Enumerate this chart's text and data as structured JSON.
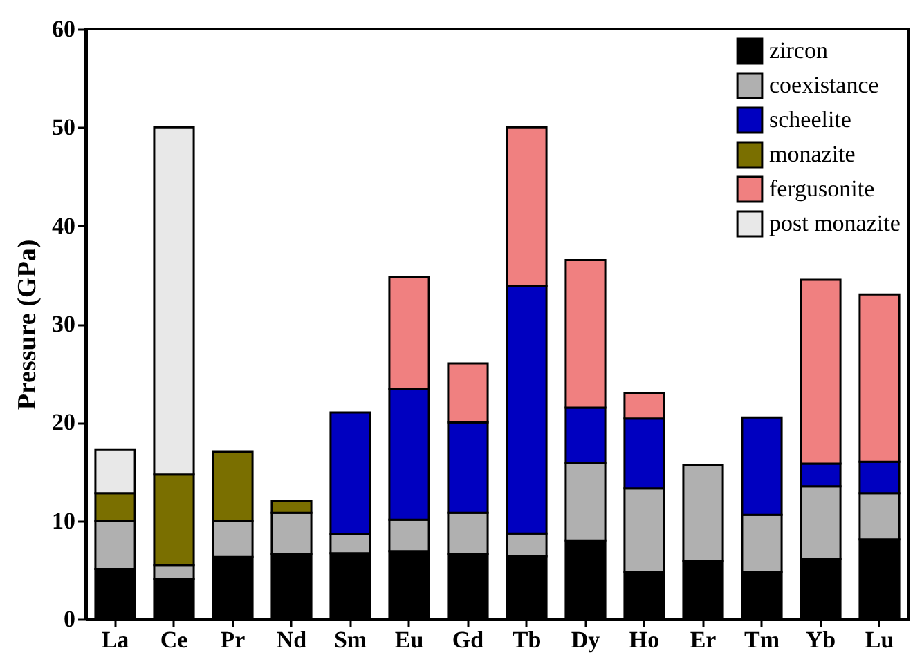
{
  "chart_data": {
    "type": "bar",
    "stacked": true,
    "ylabel": "Pressure (GPa)",
    "categories": [
      "La",
      "Ce",
      "Pr",
      "Nd",
      "Sm",
      "Eu",
      "Gd",
      "Tb",
      "Dy",
      "Ho",
      "Er",
      "Tm",
      "Yb",
      "Lu"
    ],
    "series": [
      {
        "name": "zircon",
        "color": "#000000",
        "values": [
          5.1,
          4.1,
          6.3,
          6.6,
          6.7,
          6.9,
          6.6,
          6.4,
          8.0,
          4.8,
          5.9,
          4.8,
          6.1,
          8.1
        ]
      },
      {
        "name": "coexistance",
        "color": "#b0b0b0",
        "values": [
          4.9,
          1.4,
          3.7,
          4.2,
          1.9,
          3.2,
          4.2,
          2.3,
          7.9,
          8.5,
          9.8,
          5.8,
          7.4,
          4.7
        ]
      },
      {
        "name": "scheelite",
        "color": "#0000c0",
        "values": [
          null,
          null,
          null,
          null,
          12.4,
          13.3,
          9.2,
          25.2,
          5.6,
          7.1,
          null,
          9.9,
          2.3,
          3.2
        ]
      },
      {
        "name": "monazite",
        "color": "#7a6f00",
        "values": [
          2.8,
          9.2,
          7.0,
          1.2,
          null,
          null,
          null,
          null,
          null,
          null,
          null,
          null,
          null,
          null
        ]
      },
      {
        "name": "fergusonite",
        "color": "#f08080",
        "values": [
          null,
          null,
          null,
          null,
          null,
          11.4,
          6.0,
          16.1,
          15.0,
          2.6,
          null,
          null,
          18.7,
          17.0
        ]
      },
      {
        "name": "post monazite",
        "color": "#e8e8e8",
        "values": [
          4.4,
          35.3,
          null,
          null,
          null,
          null,
          null,
          null,
          null,
          null,
          null,
          null,
          null,
          null
        ]
      }
    ],
    "ylim": [
      0,
      60
    ],
    "yticks": [
      0,
      10,
      20,
      30,
      40,
      50,
      60
    ],
    "legend": "top right"
  }
}
